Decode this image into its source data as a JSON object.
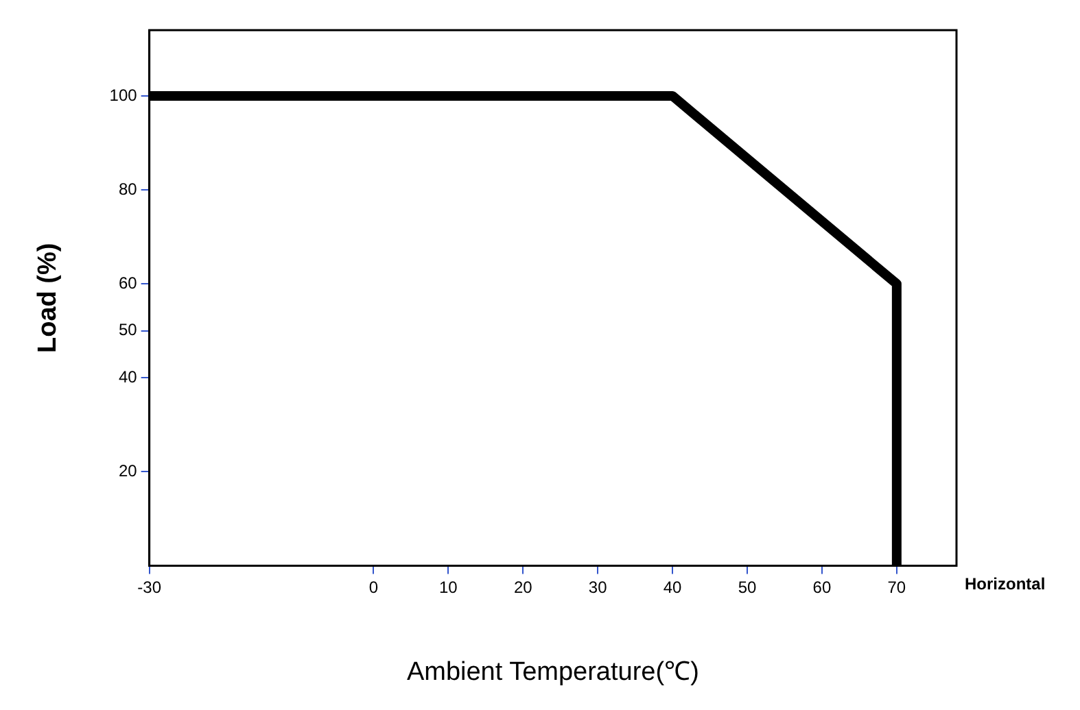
{
  "chart_data": {
    "type": "line",
    "xlabel": "Ambient Temperature(℃)",
    "ylabel": "Load (%)",
    "x": [
      -30,
      40,
      70,
      70
    ],
    "series": [
      {
        "color": "#000000",
        "values": [
          100,
          100,
          60,
          0
        ]
      }
    ],
    "xlim": [
      -30,
      78
    ],
    "xticks": [
      -30,
      0,
      10,
      20,
      30,
      40,
      50,
      60,
      70
    ],
    "ylim": [
      0,
      114
    ],
    "yticks": [
      20,
      40,
      50,
      60,
      80,
      100
    ],
    "annotations": [
      "Horizontal"
    ],
    "grid": false,
    "legend": false,
    "marker": "none",
    "line_style": "solid"
  }
}
